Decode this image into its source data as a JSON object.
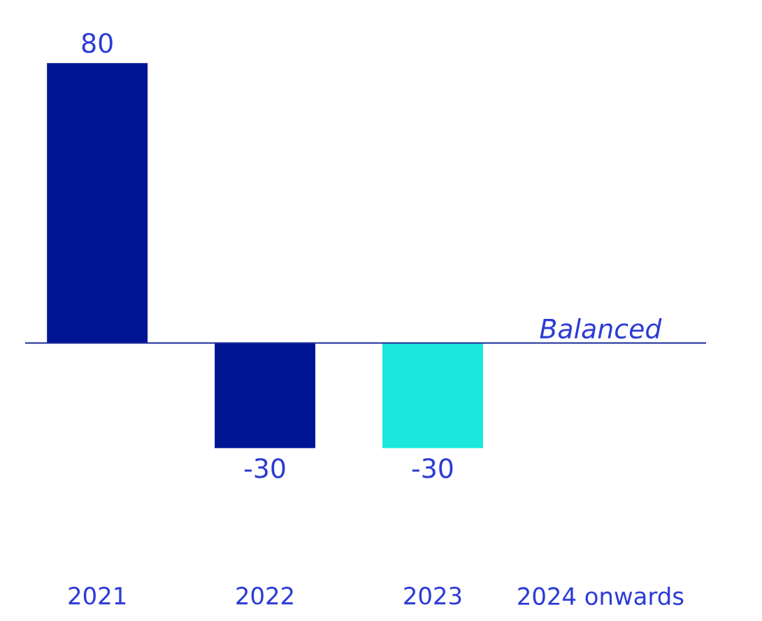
{
  "chart_data": {
    "type": "bar",
    "categories": [
      "2021",
      "2022",
      "2023",
      "2024 onwards"
    ],
    "values": [
      80,
      -30,
      -30,
      0
    ],
    "colors": [
      "#001594",
      "#001594",
      "#1ae8dc",
      "#001594"
    ],
    "value_labels": [
      "80",
      "-30",
      "-30",
      null
    ],
    "ref_lines": [
      {
        "axis": "y",
        "value": 0,
        "label": "Balanced",
        "color": "#1a2a9a"
      }
    ]
  }
}
